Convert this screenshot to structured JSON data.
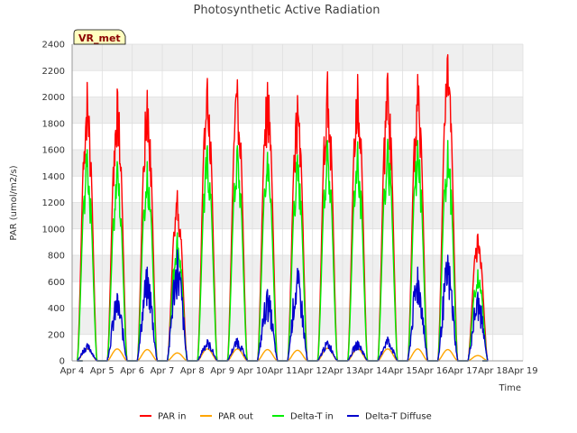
{
  "chart_data": {
    "type": "line",
    "title": "Photosynthetic Active Radiation",
    "xlabel": "Time",
    "ylabel": "PAR (umol/m2/s)",
    "ylim": [
      0,
      2400
    ],
    "yticks": [
      0,
      200,
      400,
      600,
      800,
      1000,
      1200,
      1400,
      1600,
      1800,
      2000,
      2200,
      2400
    ],
    "xlim": [
      4,
      19
    ],
    "xticks": [
      {
        "x": 4,
        "label": "Apr 4"
      },
      {
        "x": 5,
        "label": "Apr 5"
      },
      {
        "x": 6,
        "label": "Apr 6"
      },
      {
        "x": 7,
        "label": "Apr 7"
      },
      {
        "x": 8,
        "label": "Apr 8"
      },
      {
        "x": 9,
        "label": "Apr 9"
      },
      {
        "x": 10,
        "label": "Apr 10"
      },
      {
        "x": 11,
        "label": "Apr 11"
      },
      {
        "x": 12,
        "label": "Apr 12"
      },
      {
        "x": 13,
        "label": "Apr 13"
      },
      {
        "x": 14,
        "label": "Apr 14"
      },
      {
        "x": 15,
        "label": "Apr 15"
      },
      {
        "x": 16,
        "label": "Apr 16"
      },
      {
        "x": 17,
        "label": "Apr 17"
      },
      {
        "x": 18,
        "label": "Apr 18"
      },
      {
        "x": 19,
        "label": "Apr 19"
      }
    ],
    "station_label": "VR_met",
    "legend": [
      "PAR in",
      "PAR out",
      "Delta-T in",
      "Delta-T Diffuse"
    ],
    "day_noon": [
      4.5,
      5.5,
      6.5,
      7.5,
      8.5,
      9.5,
      10.5,
      11.5,
      12.5,
      13.5,
      14.5,
      15.5,
      16.5,
      17.5
    ],
    "series": [
      {
        "name": "PAR in",
        "color": "#ff0000",
        "daily_peak": [
          2110,
          2060,
          2050,
          1290,
          2140,
          2130,
          2110,
          2010,
          2190,
          2170,
          2180,
          2170,
          2320,
          960
        ]
      },
      {
        "name": "PAR out",
        "color": "#ffa500",
        "daily_peak": [
          90,
          90,
          85,
          60,
          90,
          90,
          85,
          80,
          95,
          90,
          90,
          90,
          85,
          40
        ]
      },
      {
        "name": "Delta-T in",
        "color": "#00ee00",
        "daily_peak": [
          1600,
          1510,
          1510,
          970,
          1630,
          1630,
          1580,
          1560,
          1670,
          1660,
          1680,
          1670,
          1670,
          690
        ]
      },
      {
        "name": "Delta-T Diffuse",
        "color": "#0000cc",
        "daily_peak": [
          130,
          510,
          710,
          840,
          160,
          170,
          540,
          700,
          150,
          150,
          180,
          710,
          800,
          520
        ]
      }
    ],
    "grid": true,
    "legend_placement": "bottom"
  }
}
